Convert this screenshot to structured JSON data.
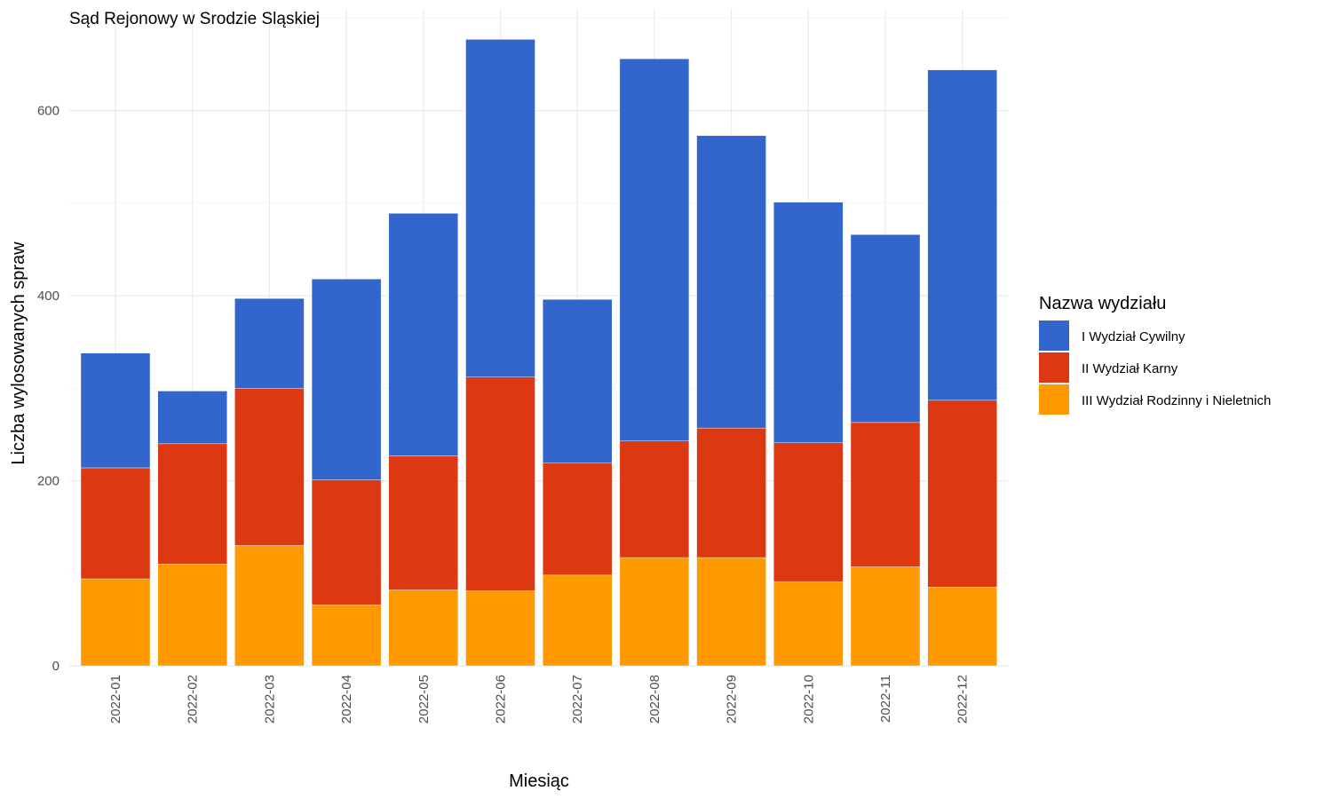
{
  "chart_data": {
    "type": "bar",
    "stacked": true,
    "title": "Sąd Rejonowy w Srodzie Sląskiej",
    "xlabel": "Miesiąc",
    "ylabel": "Liczba wylosowanych spraw",
    "ylim": [
      0,
      710
    ],
    "yticks": [
      0,
      200,
      400,
      600
    ],
    "grid": true,
    "legend": {
      "title": "Nazwa wydziału",
      "position": "right"
    },
    "categories": [
      "2022-01",
      "2022-02",
      "2022-03",
      "2022-04",
      "2022-05",
      "2022-06",
      "2022-07",
      "2022-08",
      "2022-09",
      "2022-10",
      "2022-11",
      "2022-12"
    ],
    "series": [
      {
        "name": "III Wydział Rodzinny i Nieletnich",
        "color": "#ff9900",
        "values": [
          94,
          110,
          130,
          66,
          82,
          81,
          98,
          117,
          117,
          91,
          107,
          85
        ]
      },
      {
        "name": "II Wydział Karny",
        "color": "#dc3912",
        "values": [
          120,
          130,
          170,
          135,
          145,
          231,
          121,
          126,
          140,
          150,
          156,
          202
        ]
      },
      {
        "name": "I Wydział Cywilny",
        "color": "#3366cc",
        "values": [
          124,
          57,
          97,
          217,
          262,
          365,
          177,
          413,
          316,
          260,
          203,
          357
        ]
      }
    ],
    "legend_order": [
      "I Wydział Cywilny",
      "II Wydział Karny",
      "III Wydział Rodzinny i Nieletnich"
    ]
  }
}
